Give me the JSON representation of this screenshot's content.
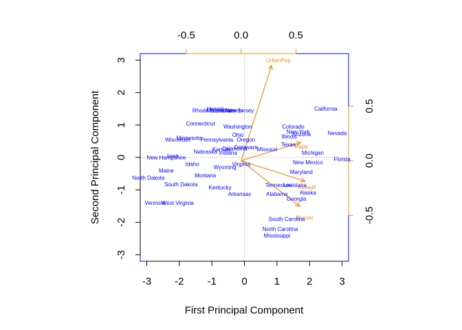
{
  "chart_data": {
    "type": "scatter",
    "subtype": "biplot",
    "xlabel": "First Principal Component",
    "ylabel": "Second Principal Component",
    "xlim": [
      -3.2,
      3.2
    ],
    "ylim": [
      -3.2,
      3.2
    ],
    "xticks": [
      -3,
      -2,
      -1,
      0,
      1,
      2,
      3
    ],
    "yticks": [
      -3,
      -2,
      -1,
      0,
      1,
      2,
      3
    ],
    "loading_xlim": [
      -0.92,
      0.98
    ],
    "loading_ylim": [
      -0.92,
      0.98
    ],
    "loading_ticks": [
      -0.5,
      0.0,
      0.5
    ],
    "loading_tick_labels": [
      "-0.5",
      "0.0",
      "0.5"
    ],
    "grid": false,
    "colors": {
      "points": "#0000ff",
      "loadings": "#e8901a",
      "frame": "#0000ff",
      "zero_lines": "#9a9a9a"
    },
    "series": [
      {
        "name": "",
        "points": [
          {
            "label": "Hawaii",
            "x": -0.9,
            "y": 1.5
          },
          {
            "label": "Rhode Island",
            "x": -1.1,
            "y": 1.45
          },
          {
            "label": "Massachusetts",
            "x": -0.6,
            "y": 1.45
          },
          {
            "label": "Utah",
            "x": -0.5,
            "y": 1.45
          },
          {
            "label": "New Jersey",
            "x": -0.15,
            "y": 1.45
          },
          {
            "label": "California",
            "x": 2.5,
            "y": 1.5
          },
          {
            "label": "Connecticut",
            "x": -1.35,
            "y": 1.05
          },
          {
            "label": "Washington",
            "x": -0.2,
            "y": 0.95
          },
          {
            "label": "Colorado",
            "x": 1.5,
            "y": 0.95
          },
          {
            "label": "New York",
            "x": 1.65,
            "y": 0.8
          },
          {
            "label": "Arizona",
            "x": 1.75,
            "y": 0.72
          },
          {
            "label": "Nevada",
            "x": 2.85,
            "y": 0.75
          },
          {
            "label": "Illinois",
            "x": 1.38,
            "y": 0.65
          },
          {
            "label": "Ohio",
            "x": -0.2,
            "y": 0.7
          },
          {
            "label": "Minnesota",
            "x": -1.7,
            "y": 0.6
          },
          {
            "label": "Wisconsin",
            "x": -2.05,
            "y": 0.55
          },
          {
            "label": "Pennsylvania",
            "x": -0.85,
            "y": 0.55
          },
          {
            "label": "Oregon",
            "x": 0.05,
            "y": 0.55
          },
          {
            "label": "Texas",
            "x": 1.35,
            "y": 0.4
          },
          {
            "label": "Delaware",
            "x": 0.05,
            "y": 0.32
          },
          {
            "label": "Missouri",
            "x": 0.7,
            "y": 0.25
          },
          {
            "label": "Kansas",
            "x": -0.7,
            "y": 0.25
          },
          {
            "label": "Oklahoma",
            "x": -0.3,
            "y": 0.28
          },
          {
            "label": "Nebraska",
            "x": -1.2,
            "y": 0.18
          },
          {
            "label": "Indiana",
            "x": -0.5,
            "y": 0.15
          },
          {
            "label": "Michigan",
            "x": 2.1,
            "y": 0.15
          },
          {
            "label": "Iowa",
            "x": -2.2,
            "y": 0.05
          },
          {
            "label": "New Hampshire",
            "x": -2.4,
            "y": -0.0
          },
          {
            "label": "Florida",
            "x": 3.0,
            "y": -0.05
          },
          {
            "label": "Idaho",
            "x": -1.6,
            "y": -0.2
          },
          {
            "label": "Virginia",
            "x": -0.1,
            "y": -0.2
          },
          {
            "label": "New Mexico",
            "x": 1.95,
            "y": -0.15
          },
          {
            "label": "Wyoming",
            "x": -0.6,
            "y": -0.3
          },
          {
            "label": "Maine",
            "x": -2.4,
            "y": -0.4
          },
          {
            "label": "Maryland",
            "x": 1.75,
            "y": -0.45
          },
          {
            "label": "Montana",
            "x": -1.2,
            "y": -0.55
          },
          {
            "label": "North Dakota",
            "x": -2.95,
            "y": -0.62
          },
          {
            "label": "South Dakota",
            "x": -1.95,
            "y": -0.83
          },
          {
            "label": "Tennessee",
            "x": 1.05,
            "y": -0.85
          },
          {
            "label": "Louisiana",
            "x": 1.55,
            "y": -0.85
          },
          {
            "label": "Kentucky",
            "x": -0.75,
            "y": -0.92
          },
          {
            "label": "Arkansas",
            "x": -0.15,
            "y": -1.12
          },
          {
            "label": "Alabama",
            "x": 1.0,
            "y": -1.12
          },
          {
            "label": "Alaska",
            "x": 1.95,
            "y": -1.08
          },
          {
            "label": "Georgia",
            "x": 1.6,
            "y": -1.27
          },
          {
            "label": "Vermont",
            "x": -2.75,
            "y": -1.4
          },
          {
            "label": "West Virginia",
            "x": -2.05,
            "y": -1.4
          },
          {
            "label": "South Carolina",
            "x": 1.3,
            "y": -1.9
          },
          {
            "label": "North Carolina",
            "x": 1.1,
            "y": -2.2
          },
          {
            "label": "Mississippi",
            "x": 1.0,
            "y": -2.4
          }
        ]
      }
    ],
    "loadings": [
      {
        "label": "UrbanPop",
        "x": 0.2784,
        "y": 0.8728,
        "label_x": 0.34,
        "label_y": 0.92
      },
      {
        "label": "Rape",
        "x": 0.5434,
        "y": 0.1673,
        "label_x": 0.55,
        "label_y": 0.13
      },
      {
        "label": "Assault",
        "x": 0.5832,
        "y": -0.188,
        "label_x": 0.6,
        "label_y": -0.24
      },
      {
        "label": "Murder",
        "x": 0.5359,
        "y": -0.4182,
        "label_x": 0.58,
        "label_y": -0.52
      }
    ]
  }
}
